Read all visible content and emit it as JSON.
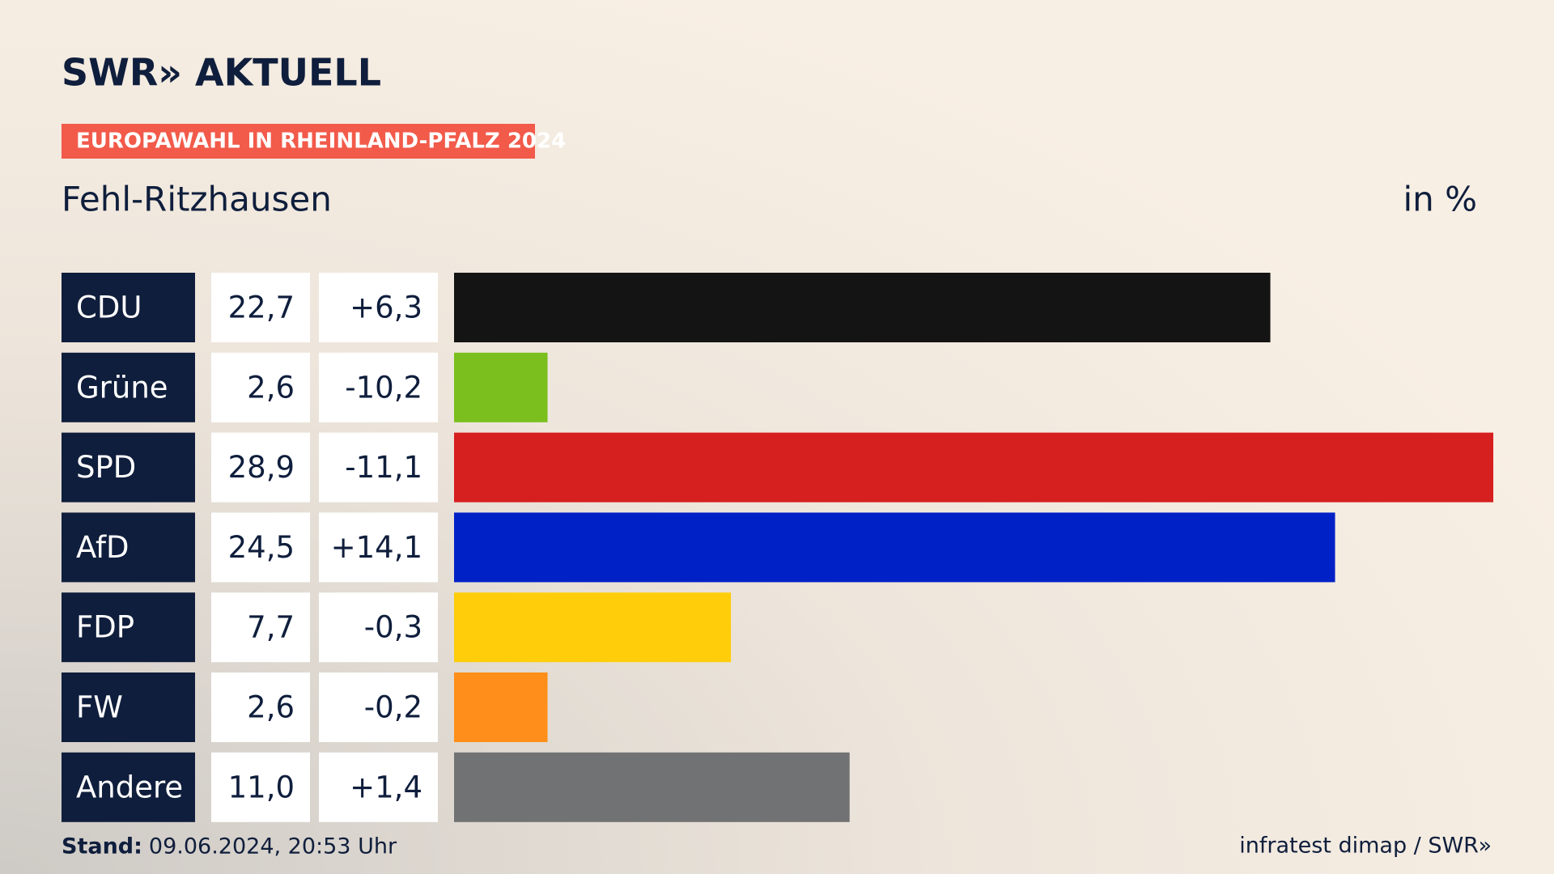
{
  "logo": "SWR» AKTUELL",
  "chart_data": {
    "type": "bar",
    "orientation": "horizontal",
    "badge": "EUROPAWAHL IN RHEINLAND-PFALZ 2024",
    "title": "Fehl-Ritzhausen",
    "unit": "in %",
    "categories": [
      "CDU",
      "Grüne",
      "SPD",
      "AfD",
      "FDP",
      "FW",
      "Andere"
    ],
    "values": [
      22.7,
      2.6,
      28.9,
      24.5,
      7.7,
      2.6,
      11.0
    ],
    "value_labels": [
      "22,7",
      "2,6",
      "28,9",
      "24,5",
      "7,7",
      "2,6",
      "11,0"
    ],
    "change_labels": [
      "+6,3",
      "-10,2",
      "-11,1",
      "+14,1",
      "-0,3",
      "-0,2",
      "+1,4"
    ],
    "colors": [
      "#141414",
      "#7abf1e",
      "#d61f1f",
      "#0021c6",
      "#ffcd0a",
      "#ff8f1a",
      "#717273"
    ],
    "footer_label": "Stand:",
    "footer_date": "09.06.2024, 20:53 Uhr",
    "source": "infratest dimap / SWR»"
  }
}
